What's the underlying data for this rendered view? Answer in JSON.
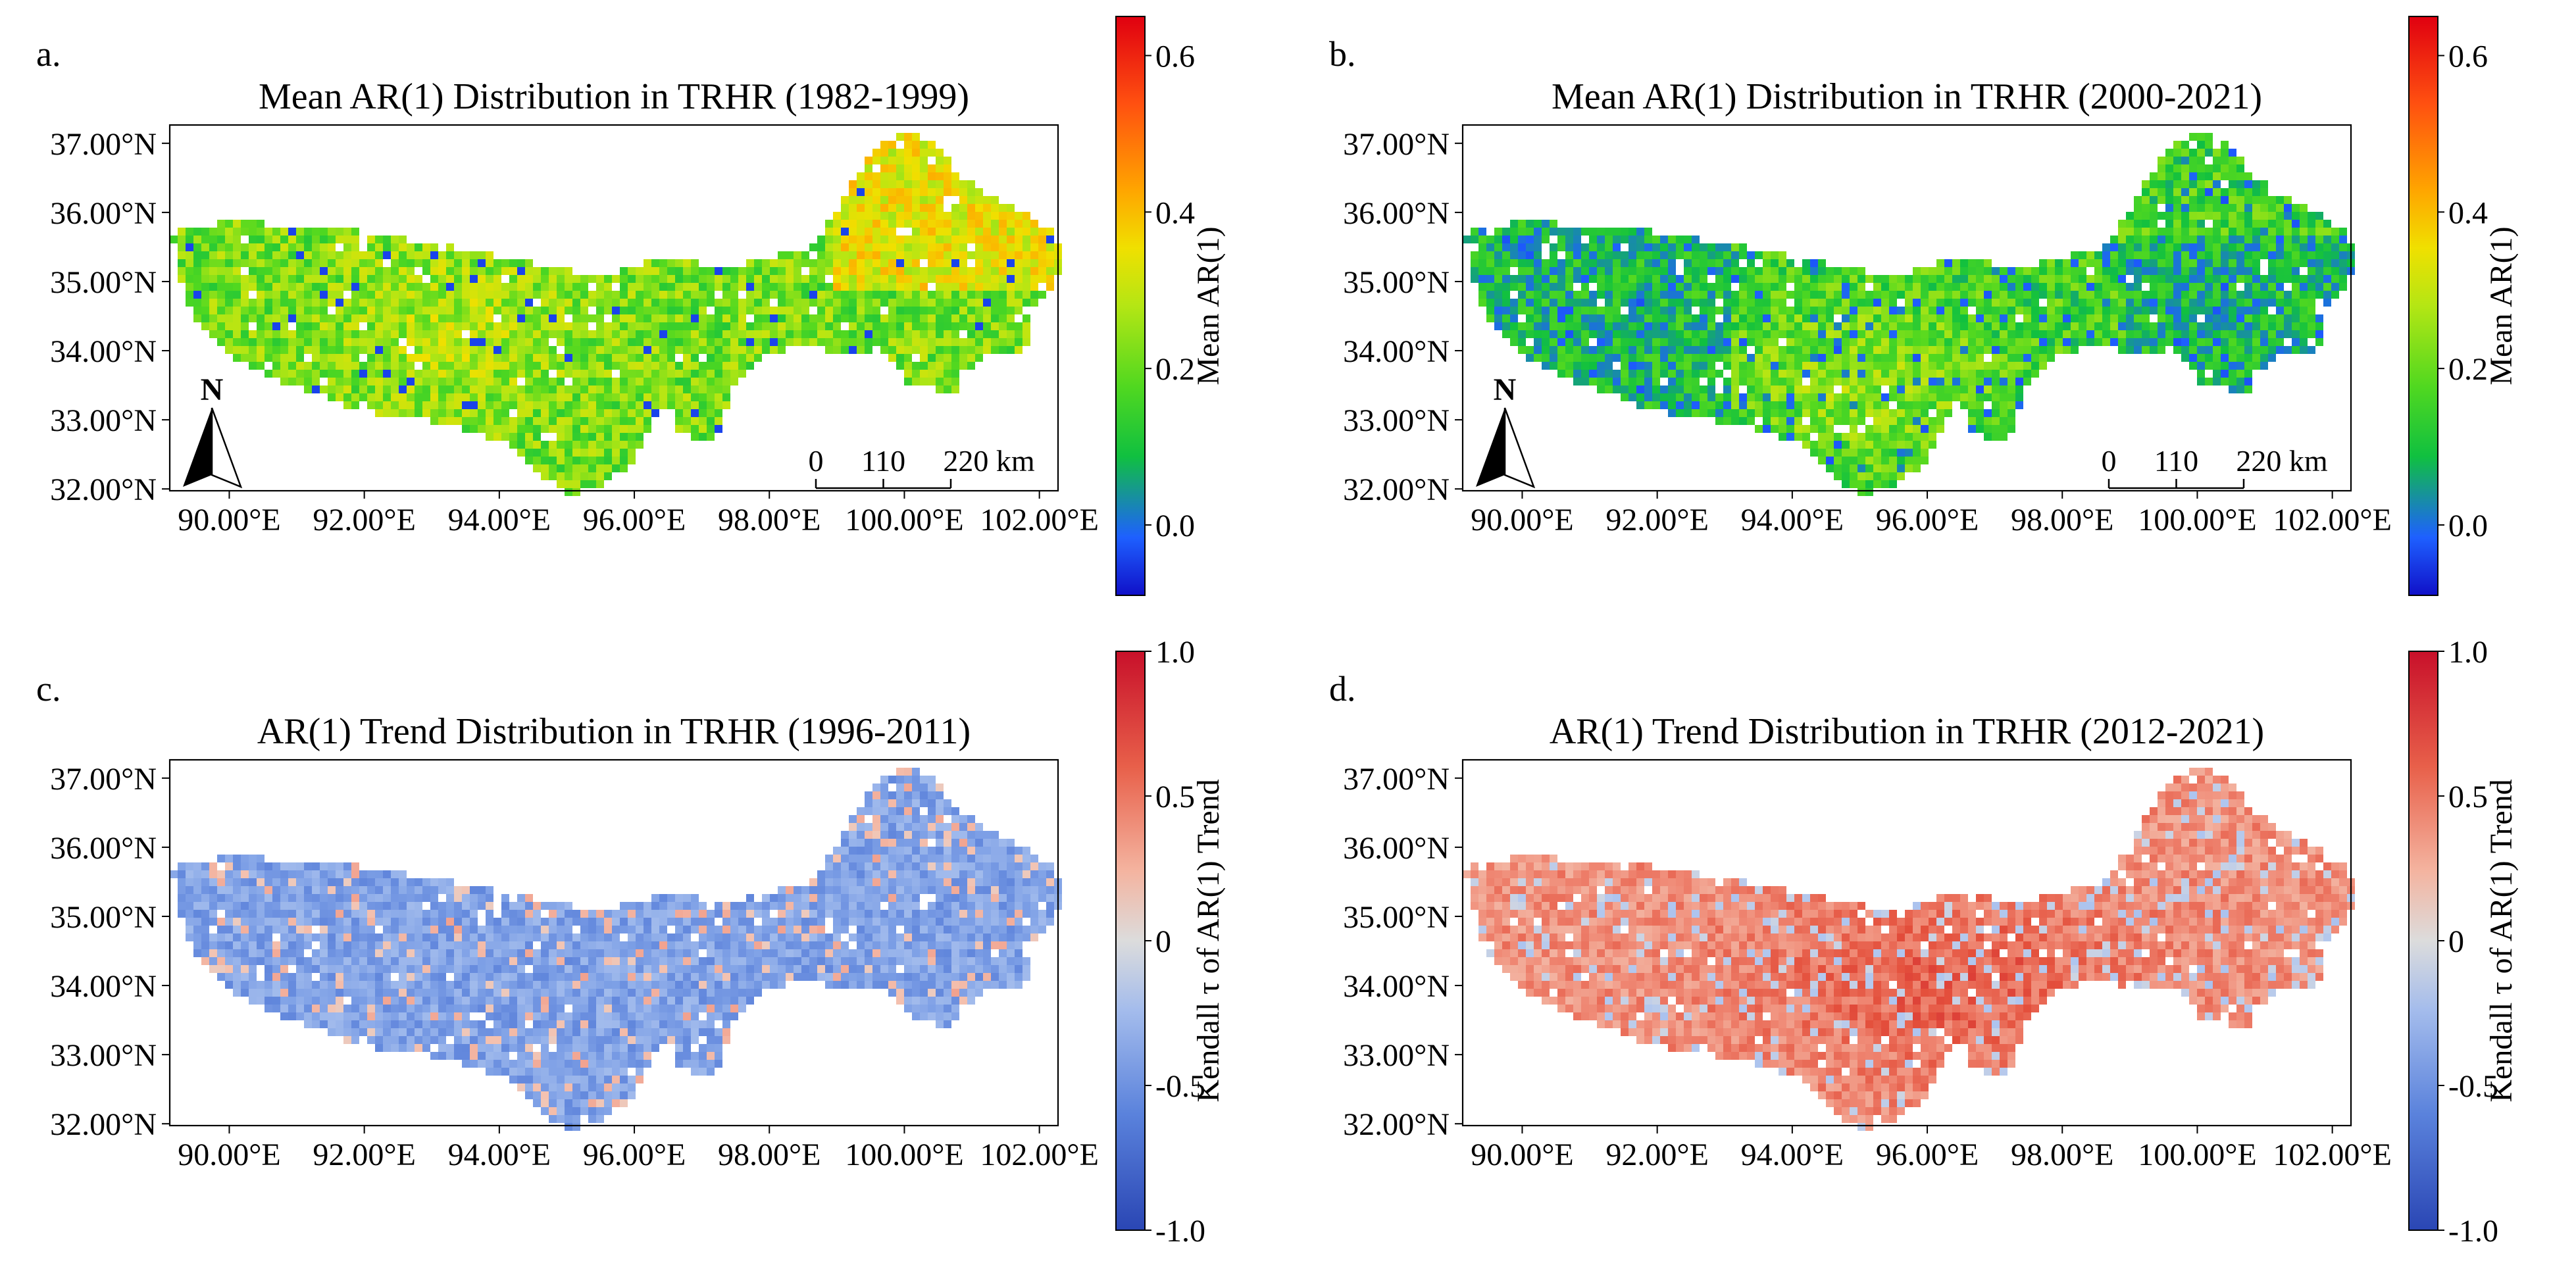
{
  "figure": {
    "panels": [
      {
        "id": "a",
        "label": "a.",
        "title": "Mean AR(1) Distribution in TRHR (1982-1999)",
        "kind": "mean",
        "xticks": [
          "90.00°E",
          "92.00°E",
          "94.00°E",
          "96.00°E",
          "98.00°E",
          "100.00°E",
          "102.00°E"
        ],
        "yticks": [
          "37.00°N",
          "36.00°N",
          "35.00°N",
          "34.00°N",
          "33.00°N",
          "32.00°N"
        ],
        "north_arrow": "N",
        "scalebar": {
          "ticks": [
            "0",
            "110",
            "220 km"
          ]
        },
        "colorbar": {
          "label": "Mean AR(1)",
          "ticks": [
            "0.6",
            "0.4",
            "0.2",
            "0.0"
          ],
          "range": [
            -0.09,
            0.65
          ]
        },
        "map_character": "mostly moderate-high values (green to orange), highest in the eastern part"
      },
      {
        "id": "b",
        "label": "b.",
        "title": "Mean AR(1) Distribution in TRHR (2000-2021)",
        "kind": "mean",
        "xticks": [
          "90.00°E",
          "92.00°E",
          "94.00°E",
          "96.00°E",
          "98.00°E",
          "100.00°E",
          "102.00°E"
        ],
        "yticks": [
          "37.00°N",
          "36.00°N",
          "35.00°N",
          "34.00°N",
          "33.00°N",
          "32.00°N"
        ],
        "north_arrow": "N",
        "scalebar": {
          "ticks": [
            "0",
            "110",
            "220 km"
          ]
        },
        "colorbar": {
          "label": "Mean AR(1)",
          "ticks": [
            "0.6",
            "0.4",
            "0.2",
            "0.0"
          ],
          "range": [
            -0.09,
            0.65
          ]
        },
        "map_character": "lower values (green with many blue patches), especially in the west and east"
      },
      {
        "id": "c",
        "label": "c.",
        "title": "AR(1) Trend Distribution in TRHR (1996-2011)",
        "kind": "trend",
        "xticks": [
          "90.00°E",
          "92.00°E",
          "94.00°E",
          "96.00°E",
          "98.00°E",
          "100.00°E",
          "102.00°E"
        ],
        "yticks": [
          "37.00°N",
          "36.00°N",
          "35.00°N",
          "34.00°N",
          "33.00°N",
          "32.00°N"
        ],
        "colorbar": {
          "label": "Kendall τ of AR(1) Trend",
          "ticks": [
            "1.0",
            "0.5",
            "0",
            "-0.5",
            "-1.0"
          ],
          "range": [
            -1.0,
            1.0
          ]
        },
        "map_character": "predominantly negative trends (blue)"
      },
      {
        "id": "d",
        "label": "d.",
        "title": "AR(1) Trend Distribution in TRHR (2012-2021)",
        "kind": "trend",
        "xticks": [
          "90.00°E",
          "92.00°E",
          "94.00°E",
          "96.00°E",
          "98.00°E",
          "100.00°E",
          "102.00°E"
        ],
        "yticks": [
          "37.00°N",
          "36.00°N",
          "35.00°N",
          "34.00°N",
          "33.00°N",
          "32.00°N"
        ],
        "colorbar": {
          "label": "Kendall τ of AR(1) Trend",
          "ticks": [
            "1.0",
            "0.5",
            "0",
            "-0.5",
            "-1.0"
          ],
          "range": [
            -1.0,
            1.0
          ]
        },
        "map_character": "predominantly positive trends (red)"
      }
    ],
    "colors": {
      "mean_ramp": [
        "#1010c8",
        "#1e60ff",
        "#10c040",
        "#50d820",
        "#b4e614",
        "#f0e000",
        "#ffa500",
        "#ff5010",
        "#e00010"
      ],
      "trend_ramp": [
        "#2a46b4",
        "#4a72d4",
        "#7ea0e6",
        "#b0c6ef",
        "#dcdcdc",
        "#f4c2b0",
        "#f08c78",
        "#e4503c",
        "#c8102a"
      ]
    }
  }
}
